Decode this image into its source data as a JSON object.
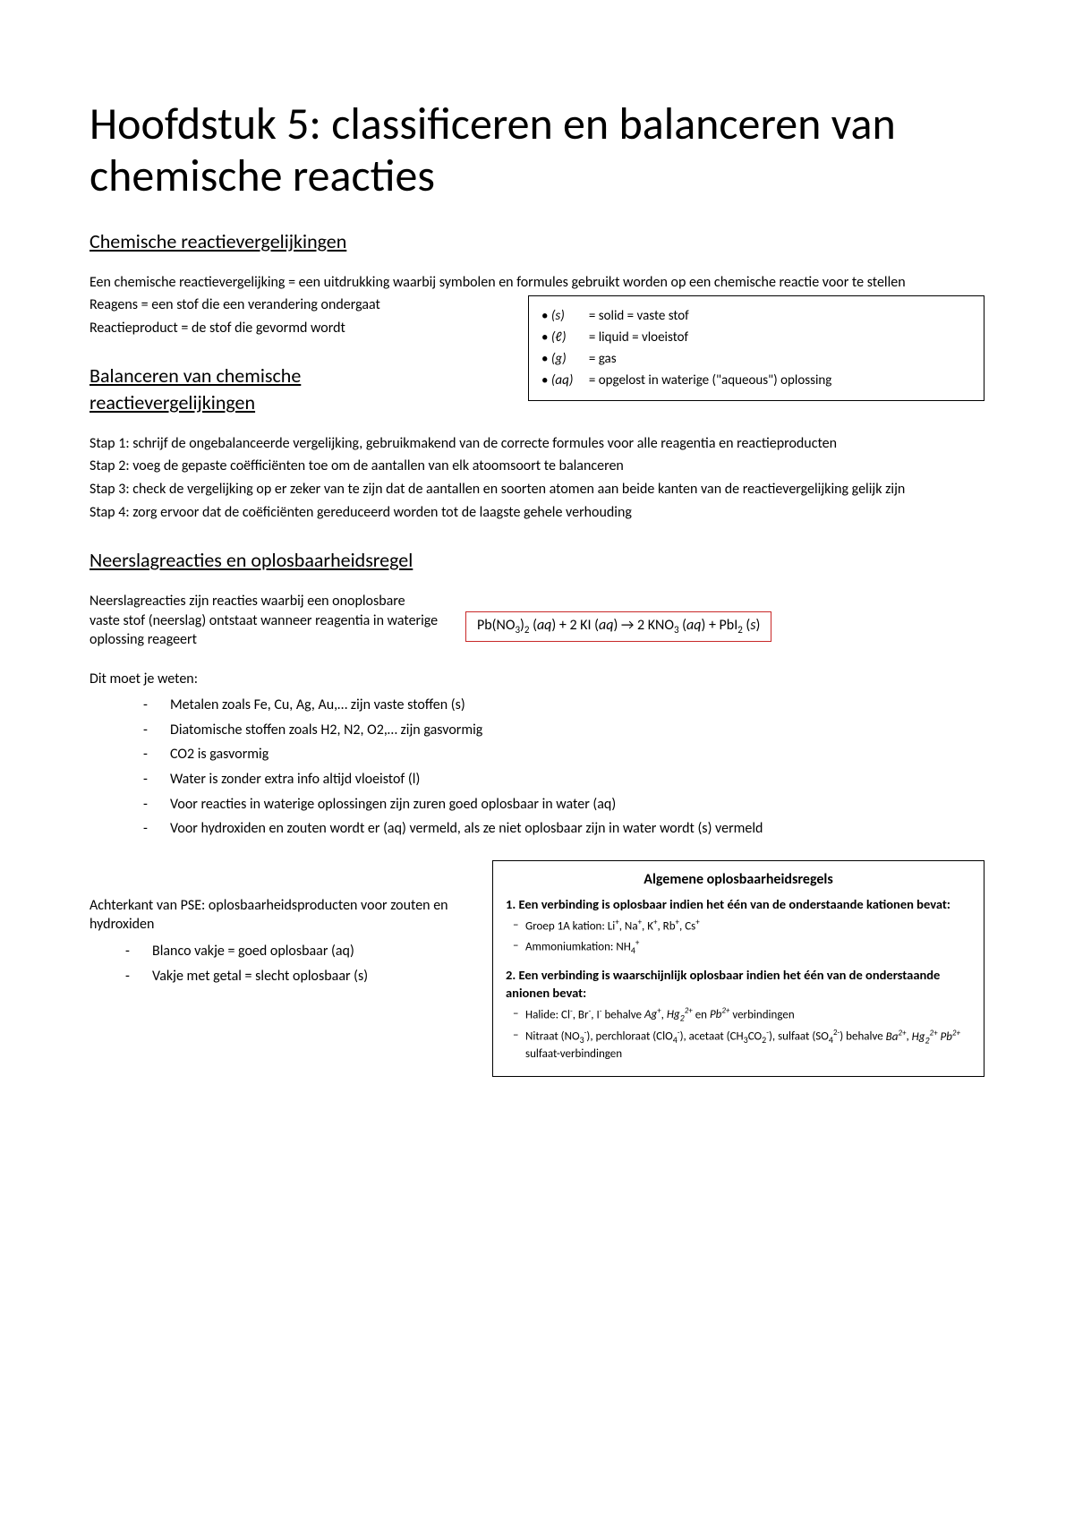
{
  "title": "Hoofdstuk 5: classificeren en balanceren van chemische reacties",
  "h2_1": "Chemische reactievergelijkingen",
  "p1": "Een chemische reactievergelijking = een uitdrukking waarbij symbolen en formules gebruikt worden op een chemische reactie voor te stellen",
  "p2": "Reagens = een stof die een verandering ondergaat",
  "p3": "Reactieproduct = de stof die gevormd wordt",
  "statebox": {
    "s": "= solid = vaste stof",
    "l": "= liquid = vloeistof",
    "g": "= gas",
    "aq": "= opgelost in waterige (\"aqueous\") oplossing"
  },
  "h2_2": "Balanceren van chemische reactievergelijkingen",
  "step1": "Stap 1: schrijf de ongebalanceerde vergelijking, gebruikmakend van de correcte formules voor alle reagentia en reactieproducten",
  "step2": "Stap 2: voeg de gepaste coëfficiënten toe om de aantallen van elk atoomsoort te balanceren",
  "step3": "Stap 3: check de vergelijking op er zeker van te zijn dat de aantallen en soorten atomen aan beide kanten van de reactievergelijking gelijk zijn",
  "step4": "Stap 4: zorg ervoor dat de coëficiënten gereduceerd worden tot de laagste gehele verhouding",
  "h2_3": "Neerslagreacties en oplosbaarheidsregel",
  "p_neer1": "Neerslagreacties zijn reacties waarbij een onoplosbare vaste stof (neerslag) ontstaat wanneer reagentia in waterige oplossing reageert",
  "equation_html": "Pb(NO<span class='sub'>3</span>)<span class='sub'>2</span> (<span class='it'>aq</span>) + 2 KI (<span class='it'>aq</span>) → 2 KNO<span class='sub'>3</span> (<span class='it'>aq</span>) + PbI<span class='sub'>2</span> (<span class='it'>s</span>)",
  "p_weten": "Dit moet je weten:",
  "weten_items": [
    "Metalen zoals Fe, Cu, Ag, Au,… zijn vaste stoffen (s)",
    "Diatomische stoffen zoals H2, N2, O2,… zijn gasvormig",
    "CO2 is gasvormig",
    "Water is zonder extra info altijd vloeistof (l)",
    "Voor reacties in waterige oplossingen zijn zuren goed oplosbaar in water (aq)",
    "Voor hydroxiden en zouten wordt er (aq) vermeld, als ze niet oplosbaar zijn in water wordt (s) vermeld"
  ],
  "left_p1": "Achterkant van PSE: oplosbaarheidsproducten voor zouten en hydroxiden",
  "left_li1": "Blanco vakje = goed oplosbaar (aq)",
  "left_li2": "Vakje met getal = slecht oplosbaar (s)",
  "rules": {
    "title": "Algemene oplosbaarheidsregels",
    "r1_head": "1. Een verbinding is oplosbaar  indien het één van de onderstaande kationen bevat:",
    "r1_a_html": "Groep 1A kation: Li<span class='sup'>+</span>, Na<span class='sup'>+</span>, K<span class='sup'>+</span>, Rb<span class='sup'>+</span>, Cs<span class='sup'>+</span>",
    "r1_b_html": "Ammoniumkation: NH<span class='subs'>4</span><span class='sup'>+</span>",
    "r2_head": "2. Een verbinding is waarschijnlijk oplosbaar indien het één van de onderstaande anionen bevat:",
    "r2_a_html": "Halide: Cl<span class='sup'>-</span>, Br<span class='sup'>-</span>, I<span class='sup'>-</span> behalve <i>Ag<span class='sup'>+</span></i>, <i>Hg<span class='subs'>2</span><span class='sup'>2+</span></i> en <i>Pb<span class='sup'>2+</span></i> verbindingen",
    "r2_b_html": "Nitraat (NO<span class='subs'>3</span><span class='sup'>-</span>), perchloraat (ClO<span class='subs'>4</span><span class='sup'>-</span>), acetaat (CH<span class='subs'>3</span>CO<span class='subs'>2</span><span class='sup'>-</span>), sulfaat (SO<span class='subs'>4</span><span class='sup'>2-</span>) behalve <i>Ba<span class='sup'>2+</span></i>, <i>Hg<span class='subs'>2</span><span class='sup'>2+</span> Pb<span class='sup'>2+</span></i> sulfaat-verbindingen"
  }
}
